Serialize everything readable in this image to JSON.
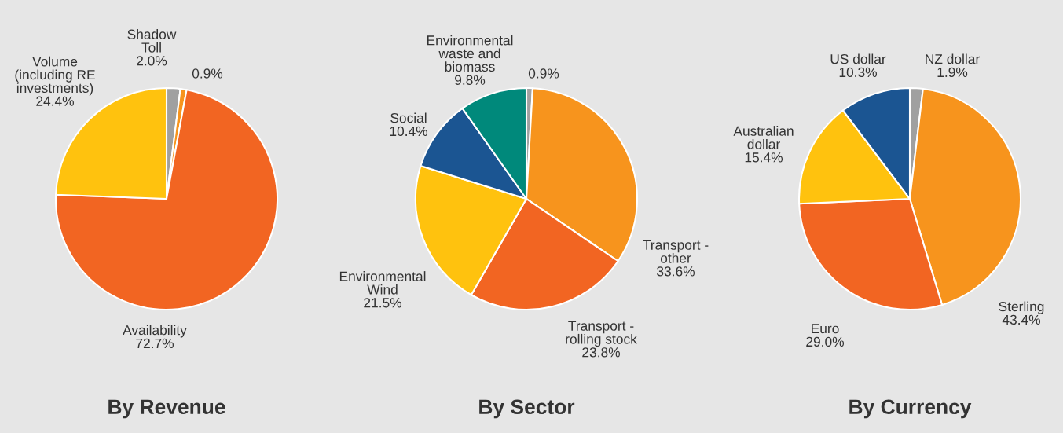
{
  "chart_data": [
    {
      "type": "pie",
      "title": "By Revenue",
      "categories": [
        "Shadow\nToll",
        null,
        "Availability",
        "Volume\n(including RE\ninvestments)"
      ],
      "values": [
        2.0,
        0.9,
        72.7,
        24.4
      ],
      "value_labels": [
        "2.0%",
        "0.9%",
        "72.7%",
        "24.4%"
      ],
      "colors": [
        "#a0a0a0",
        "#f7941d",
        "#f26522",
        "#ffc20e"
      ]
    },
    {
      "type": "pie",
      "title": "By Sector",
      "categories": [
        null,
        "Transport -\nother",
        "Transport -\nrolling stock",
        "Environmental\nWind",
        "Social",
        "Environmental\nwaste and\nbiomass"
      ],
      "values": [
        0.9,
        33.6,
        23.8,
        21.5,
        10.4,
        9.8
      ],
      "value_labels": [
        "0.9%",
        "33.6%",
        "23.8%",
        "21.5%",
        "10.4%",
        "9.8%"
      ],
      "colors": [
        "#a0a0a0",
        "#f7941d",
        "#f26522",
        "#ffc20e",
        "#1b5592",
        "#00897b"
      ]
    },
    {
      "type": "pie",
      "title": "By Currency",
      "categories": [
        "NZ dollar",
        "Sterling",
        "Euro",
        "Australian\ndollar",
        "US dollar"
      ],
      "values": [
        1.9,
        43.4,
        29.0,
        15.4,
        10.3
      ],
      "value_labels": [
        "1.9%",
        "43.4%",
        "29.0%",
        "15.4%",
        "10.3%"
      ],
      "colors": [
        "#a0a0a0",
        "#f7941d",
        "#f26522",
        "#ffc20e",
        "#1b5592"
      ]
    }
  ]
}
